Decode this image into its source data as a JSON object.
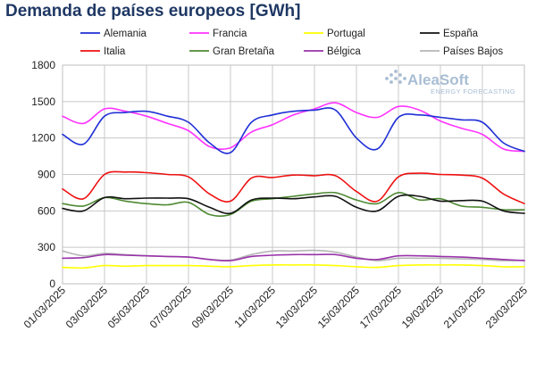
{
  "chart_data": {
    "type": "line",
    "title": "Demanda de países europeos [GWh]",
    "xlabel": "",
    "ylabel": "",
    "ylim": [
      0,
      1800
    ],
    "yticks": [
      0,
      300,
      600,
      900,
      1200,
      1500,
      1800
    ],
    "grid": true,
    "legend_position": "top",
    "x": [
      "01/03/2025",
      "02/03/2025",
      "03/03/2025",
      "04/03/2025",
      "05/03/2025",
      "06/03/2025",
      "07/03/2025",
      "08/03/2025",
      "09/03/2025",
      "10/03/2025",
      "11/03/2025",
      "12/03/2025",
      "13/03/2025",
      "14/03/2025",
      "15/03/2025",
      "16/03/2025",
      "17/03/2025",
      "18/03/2025",
      "19/03/2025",
      "20/03/2025",
      "21/03/2025",
      "22/03/2025",
      "23/03/2025"
    ],
    "xtick_labels": [
      "01/03/2025",
      "03/03/2025",
      "05/03/2025",
      "07/03/2025",
      "09/03/2025",
      "11/03/2025",
      "13/03/2025",
      "15/03/2025",
      "17/03/2025",
      "19/03/2025",
      "21/03/2025",
      "23/03/2025"
    ],
    "series": [
      {
        "name": "Alemania",
        "color": "#1f2fd6",
        "values": [
          1230,
          1150,
          1380,
          1410,
          1420,
          1380,
          1330,
          1160,
          1080,
          1330,
          1390,
          1420,
          1430,
          1430,
          1200,
          1110,
          1370,
          1390,
          1370,
          1350,
          1330,
          1160,
          1090
        ]
      },
      {
        "name": "Francia",
        "color": "#ff33ff",
        "values": [
          1380,
          1320,
          1440,
          1420,
          1380,
          1320,
          1260,
          1130,
          1120,
          1250,
          1310,
          1390,
          1440,
          1490,
          1410,
          1370,
          1460,
          1430,
          1340,
          1280,
          1230,
          1110,
          1090
        ]
      },
      {
        "name": "Portugal",
        "color": "#ffff00",
        "values": [
          135,
          130,
          150,
          145,
          150,
          150,
          150,
          145,
          140,
          150,
          155,
          155,
          155,
          150,
          140,
          135,
          150,
          155,
          155,
          155,
          150,
          140,
          140
        ]
      },
      {
        "name": "España",
        "color": "#111111",
        "values": [
          620,
          600,
          710,
          700,
          705,
          705,
          700,
          630,
          580,
          690,
          705,
          700,
          715,
          720,
          630,
          600,
          720,
          720,
          680,
          685,
          680,
          600,
          580
        ]
      },
      {
        "name": "Italia",
        "color": "#ee1111",
        "values": [
          780,
          700,
          900,
          920,
          915,
          900,
          880,
          740,
          680,
          870,
          875,
          895,
          890,
          890,
          760,
          680,
          880,
          910,
          900,
          895,
          870,
          740,
          660
        ]
      },
      {
        "name": "Gran Bretaña",
        "color": "#4f8a34",
        "values": [
          660,
          640,
          710,
          680,
          660,
          650,
          670,
          570,
          570,
          680,
          700,
          720,
          740,
          750,
          690,
          660,
          750,
          690,
          700,
          640,
          630,
          610,
          610
        ]
      },
      {
        "name": "Bélgica",
        "color": "#9933aa",
        "values": [
          210,
          215,
          240,
          235,
          230,
          225,
          220,
          200,
          190,
          225,
          235,
          240,
          240,
          240,
          210,
          200,
          230,
          230,
          225,
          220,
          210,
          200,
          190
        ]
      },
      {
        "name": "Países Bajos",
        "color": "#b5b5b5",
        "values": [
          270,
          230,
          250,
          240,
          230,
          225,
          220,
          200,
          195,
          240,
          270,
          270,
          275,
          260,
          220,
          190,
          210,
          210,
          210,
          205,
          200,
          190,
          195
        ]
      }
    ]
  },
  "logo": {
    "name": "AleaSoft",
    "tagline": "ENERGY FORECASTING"
  }
}
